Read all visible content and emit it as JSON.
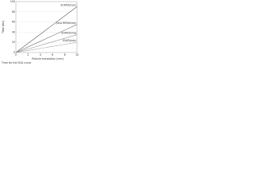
{
  "chart_data": {
    "type": "line",
    "x_label": "Particle translation (mm)",
    "y_label": "Time (ms)",
    "caption": "Time for the SOA curve",
    "x": [
      0,
      2,
      4,
      6,
      8,
      10
    ],
    "series": [
      {
        "name": "SOAP/binary",
        "color": "#555555",
        "values": [
          0,
          18,
          36,
          54,
          72,
          90
        ]
      },
      {
        "name": "Java RMI/binary",
        "color": "#777777",
        "values": [
          0,
          11,
          22,
          33,
          44,
          55
        ]
      },
      {
        "name": "SOAP/string",
        "color": "#999999",
        "values": [
          0,
          7,
          14,
          21,
          28,
          35
        ]
      },
      {
        "name": "SOAP/plain",
        "color": "#aaaaaa",
        "values": [
          0,
          4,
          8,
          12,
          16,
          20
        ]
      }
    ],
    "xlim": [
      0,
      10
    ],
    "ylim": [
      0,
      100
    ],
    "xticks": [
      0,
      2,
      4,
      6,
      8,
      10
    ],
    "yticks": [
      0,
      20,
      40,
      60,
      80,
      100
    ],
    "grid": true
  }
}
